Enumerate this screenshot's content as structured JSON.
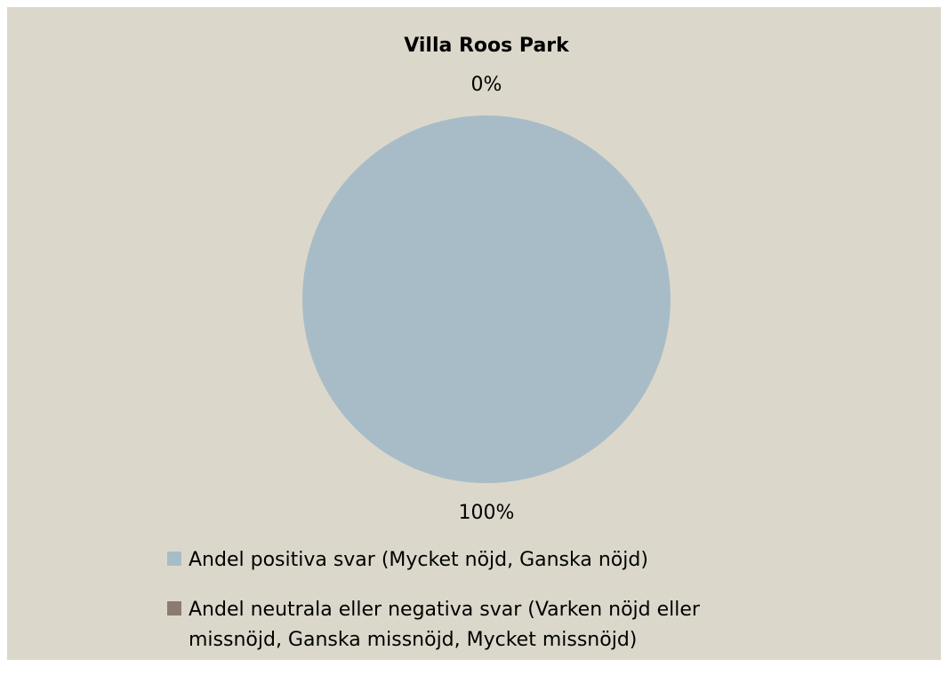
{
  "chart_data": {
    "type": "pie",
    "title": "Villa Roos Park",
    "categories": [
      "Andel positiva svar (Mycket nöjd, Ganska nöjd)",
      "Andel neutrala eller negativa svar (Varken nöjd eller missnöjd, Ganska missnöjd, Mycket missnöjd)"
    ],
    "values": [
      100,
      0
    ],
    "value_labels": [
      "100%",
      "0%"
    ],
    "colors": [
      "#a8bcc8",
      "#8c7b70"
    ],
    "legend": "bottom"
  }
}
